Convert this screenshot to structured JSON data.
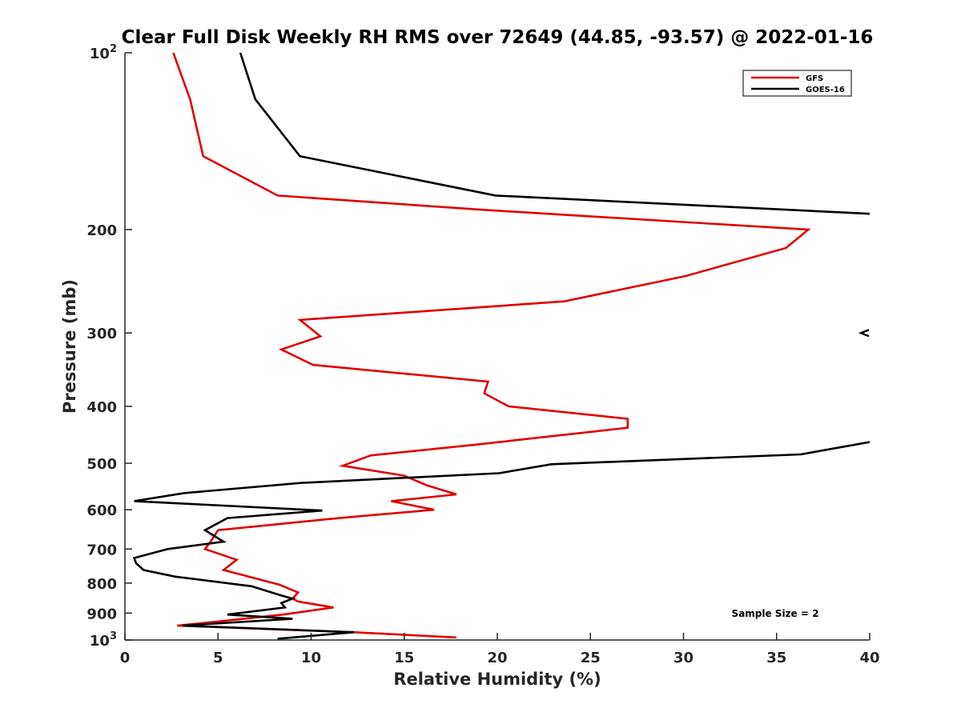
{
  "chart_data": {
    "type": "line",
    "title": "Clear Full Disk Weekly RH RMS over 72649 (44.85, -93.57) @ 2022-01-16",
    "xlabel": "Relative Humidity (%)",
    "ylabel": "Pressure (mb)",
    "xlim": [
      0,
      40
    ],
    "ylim": [
      100,
      1000
    ],
    "y_scale": "log",
    "y_reversed": true,
    "x_ticks": [
      "0",
      "5",
      "10",
      "15",
      "20",
      "25",
      "30",
      "35",
      "40"
    ],
    "y_ticks": [
      {
        "value": 100,
        "base": "10",
        "exp": "2"
      },
      {
        "value": 200,
        "label": "200"
      },
      {
        "value": 300,
        "label": "300"
      },
      {
        "value": 400,
        "label": "400"
      },
      {
        "value": 500,
        "label": "500"
      },
      {
        "value": 600,
        "label": "600"
      },
      {
        "value": 700,
        "label": "700"
      },
      {
        "value": 800,
        "label": "800"
      },
      {
        "value": 900,
        "label": "900"
      },
      {
        "value": 1000,
        "base": "10",
        "exp": "3"
      }
    ],
    "legend": {
      "position": "top-right",
      "entries": [
        "GFS",
        "GOES-16"
      ]
    },
    "annotation": "Sample Size = 2",
    "series": [
      {
        "name": "GFS",
        "color": "#e00000",
        "points": [
          [
            2.6,
            100
          ],
          [
            3.5,
            120
          ],
          [
            4.2,
            150
          ],
          [
            8.2,
            175
          ],
          [
            19.1,
            185
          ],
          [
            36.7,
            200
          ],
          [
            35.5,
            215
          ],
          [
            30.1,
            240
          ],
          [
            23.6,
            265
          ],
          [
            9.4,
            285
          ],
          [
            10.5,
            304
          ],
          [
            8.4,
            320
          ],
          [
            10.1,
            340
          ],
          [
            19.5,
            363
          ],
          [
            19.3,
            380
          ],
          [
            20.6,
            400
          ],
          [
            27.0,
            420
          ],
          [
            27.0,
            435
          ],
          [
            18.8,
            465
          ],
          [
            13.2,
            485
          ],
          [
            11.7,
            505
          ],
          [
            15.0,
            525
          ],
          [
            16.2,
            545
          ],
          [
            17.8,
            565
          ],
          [
            14.3,
            580
          ],
          [
            16.6,
            600
          ],
          [
            11.5,
            620
          ],
          [
            5.0,
            650
          ],
          [
            4.6,
            680
          ],
          [
            4.3,
            700
          ],
          [
            6.0,
            730
          ],
          [
            5.3,
            760
          ],
          [
            8.3,
            805
          ],
          [
            9.3,
            830
          ],
          [
            9.0,
            850
          ],
          [
            9.3,
            860
          ],
          [
            11.2,
            880
          ],
          [
            8.5,
            905
          ],
          [
            5.0,
            930
          ],
          [
            2.8,
            945
          ],
          [
            12.3,
            970
          ],
          [
            17.8,
            990
          ]
        ]
      },
      {
        "name": "GOES-16",
        "color": "#000000",
        "points": [
          [
            6.2,
            100
          ],
          [
            7.0,
            120
          ],
          [
            9.4,
            150
          ],
          [
            19.9,
            175
          ],
          [
            40.0,
            188
          ]
        ]
      },
      {
        "name": "GOES-16",
        "color": "#000000",
        "points": [
          [
            40.0,
            460
          ],
          [
            36.3,
            483
          ],
          [
            22.9,
            502
          ],
          [
            20.1,
            520
          ],
          [
            9.5,
            540
          ],
          [
            3.2,
            562
          ],
          [
            0.5,
            580
          ],
          [
            10.6,
            602
          ],
          [
            5.5,
            620
          ],
          [
            4.3,
            650
          ],
          [
            5.3,
            680
          ],
          [
            2.3,
            700
          ],
          [
            0.5,
            725
          ],
          [
            0.6,
            740
          ],
          [
            1.0,
            760
          ],
          [
            2.7,
            780
          ],
          [
            6.8,
            810
          ],
          [
            8.4,
            840
          ],
          [
            9.0,
            850
          ],
          [
            8.4,
            865
          ],
          [
            8.6,
            880
          ],
          [
            5.5,
            905
          ],
          [
            9.0,
            920
          ],
          [
            3.1,
            945
          ],
          [
            12.3,
            970
          ],
          [
            8.2,
            995
          ]
        ]
      }
    ],
    "marker": {
      "x": 40,
      "y": 300,
      "symbol": "<",
      "color": "#000000"
    }
  }
}
